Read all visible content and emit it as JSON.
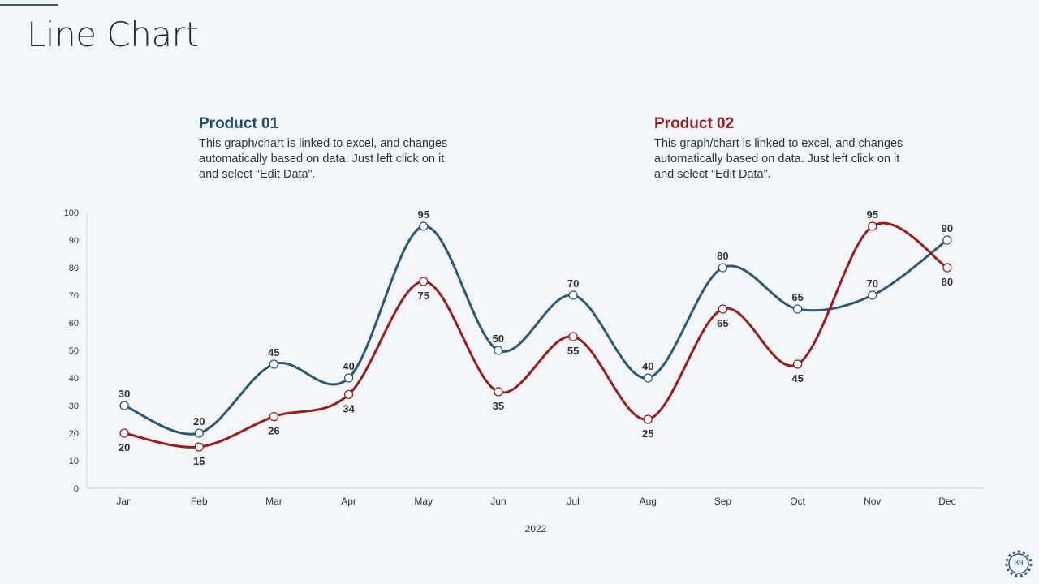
{
  "page": {
    "title": "Line Chart",
    "page_number": "39"
  },
  "legend": [
    {
      "name": "Product 01",
      "desc": "This graph/chart is linked to excel, and changes automatically based on data. Just left click on it and select “Edit Data”."
    },
    {
      "name": "Product 02",
      "desc": "This graph/chart is linked to excel, and changes automatically based on data. Just left click on it and select “Edit Data”."
    }
  ],
  "chart_data": {
    "type": "line",
    "title": "",
    "xlabel": "2022",
    "ylabel": "",
    "ylim": [
      0,
      100
    ],
    "yticks": [
      0,
      10,
      20,
      30,
      40,
      50,
      60,
      70,
      80,
      90,
      100
    ],
    "categories": [
      "Jan",
      "Feb",
      "Mar",
      "Apr",
      "May",
      "Jun",
      "Jul",
      "Aug",
      "Sep",
      "Oct",
      "Nov",
      "Dec"
    ],
    "grid": false,
    "series": [
      {
        "name": "Product 01",
        "color": "#2b5a78",
        "label_position": [
          1,
          1,
          1,
          1,
          1,
          1,
          1,
          1,
          1,
          1,
          1,
          1
        ],
        "values": [
          30,
          20,
          45,
          40,
          95,
          50,
          70,
          40,
          80,
          65,
          70,
          90
        ]
      },
      {
        "name": "Product 02",
        "color": "#9b1c1c",
        "label_position": [
          0,
          0,
          0,
          0,
          0,
          0,
          0,
          0,
          0,
          0,
          1,
          0
        ],
        "values": [
          20,
          15,
          26,
          34,
          75,
          35,
          55,
          25,
          65,
          45,
          95,
          80
        ]
      }
    ]
  }
}
